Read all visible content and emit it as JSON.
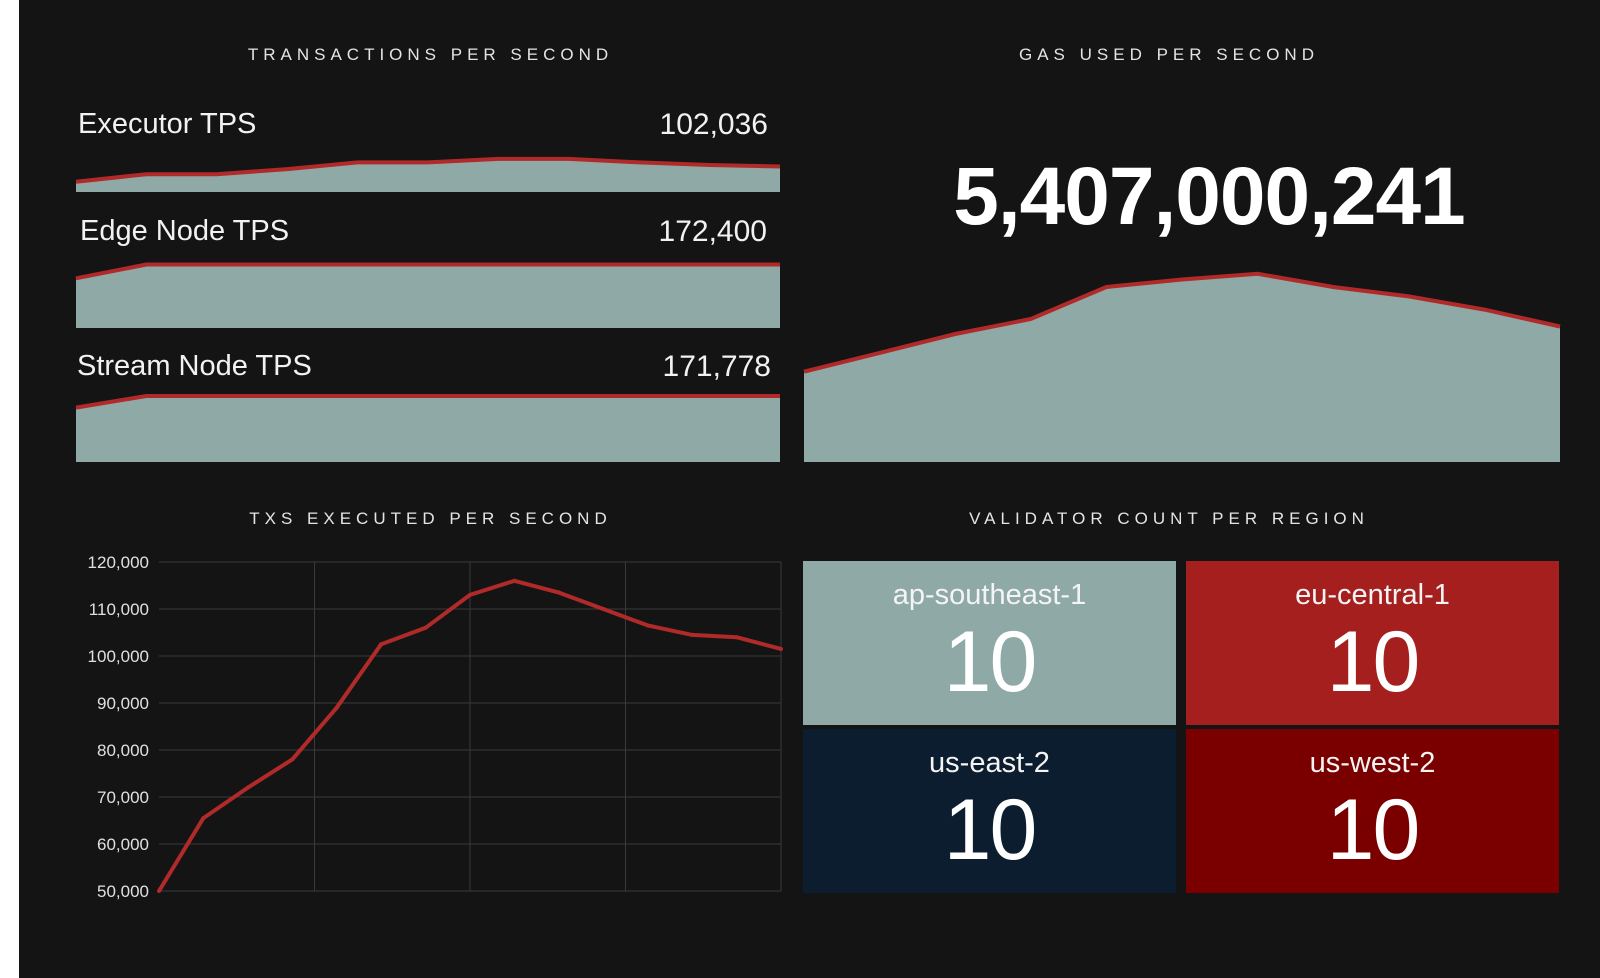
{
  "colors": {
    "background": "#141414",
    "area_fill": "#8fa9a7",
    "line": "#b12a2a",
    "grid": "#3a3a3a"
  },
  "sections": {
    "tps_title": "TRANSACTIONS PER SECOND",
    "gas_title": "GAS USED PER SECOND",
    "txs_title": "TXS EXECUTED PER SECOND",
    "validator_title": "VALIDATOR COUNT PER REGION"
  },
  "tps_metrics": [
    {
      "label": "Executor TPS",
      "value": "102,036"
    },
    {
      "label": "Edge Node TPS",
      "value": "172,400"
    },
    {
      "label": "Stream Node TPS",
      "value": "171,778"
    }
  ],
  "gas": {
    "value": "5,407,000,241"
  },
  "chart_data": [
    {
      "type": "area",
      "title": "Executor TPS",
      "values": [
        0.2,
        0.35,
        0.35,
        0.45,
        0.58,
        0.58,
        0.65,
        0.65,
        0.58,
        0.53,
        0.5
      ],
      "ylim": [
        0,
        1
      ]
    },
    {
      "type": "area",
      "title": "Edge Node TPS",
      "values": [
        0.72,
        0.92,
        0.92,
        0.92,
        0.92,
        0.92,
        0.92,
        0.92,
        0.92,
        0.92,
        0.92
      ],
      "ylim": [
        0,
        1
      ]
    },
    {
      "type": "area",
      "title": "Stream Node TPS",
      "values": [
        0.8,
        0.97,
        0.97,
        0.97,
        0.97,
        0.97,
        0.97,
        0.97,
        0.97,
        0.97,
        0.97
      ],
      "ylim": [
        0,
        1
      ]
    },
    {
      "type": "area",
      "title": "GAS USED PER SECOND",
      "values": [
        0.48,
        0.58,
        0.68,
        0.76,
        0.93,
        0.97,
        1.0,
        0.93,
        0.88,
        0.81,
        0.72
      ],
      "ylim": [
        0,
        1.1
      ]
    },
    {
      "type": "line",
      "title": "TXS EXECUTED PER SECOND",
      "x": [
        0,
        1,
        2,
        3,
        4,
        5,
        6,
        7,
        8,
        9,
        10,
        11,
        12,
        13,
        14
      ],
      "y": [
        50000,
        65500,
        72000,
        78000,
        89000,
        102500,
        106000,
        113000,
        116000,
        113500,
        110000,
        106500,
        104500,
        104000,
        101500
      ],
      "yticks": [
        "120,000",
        "110,000",
        "100,000",
        "90,000",
        "80,000",
        "70,000",
        "60,000",
        "50,000"
      ],
      "ylim": [
        50000,
        120000
      ],
      "xlim": [
        0,
        14
      ],
      "grid": true
    }
  ],
  "validators": [
    {
      "region": "ap-southeast-1",
      "count": "10",
      "color": "#8fa9a7"
    },
    {
      "region": "eu-central-1",
      "count": "10",
      "color": "#a61f1f"
    },
    {
      "region": "us-east-2",
      "count": "10",
      "color": "#0b1d2e"
    },
    {
      "region": "us-west-2",
      "count": "10",
      "color": "#7a0000"
    }
  ]
}
